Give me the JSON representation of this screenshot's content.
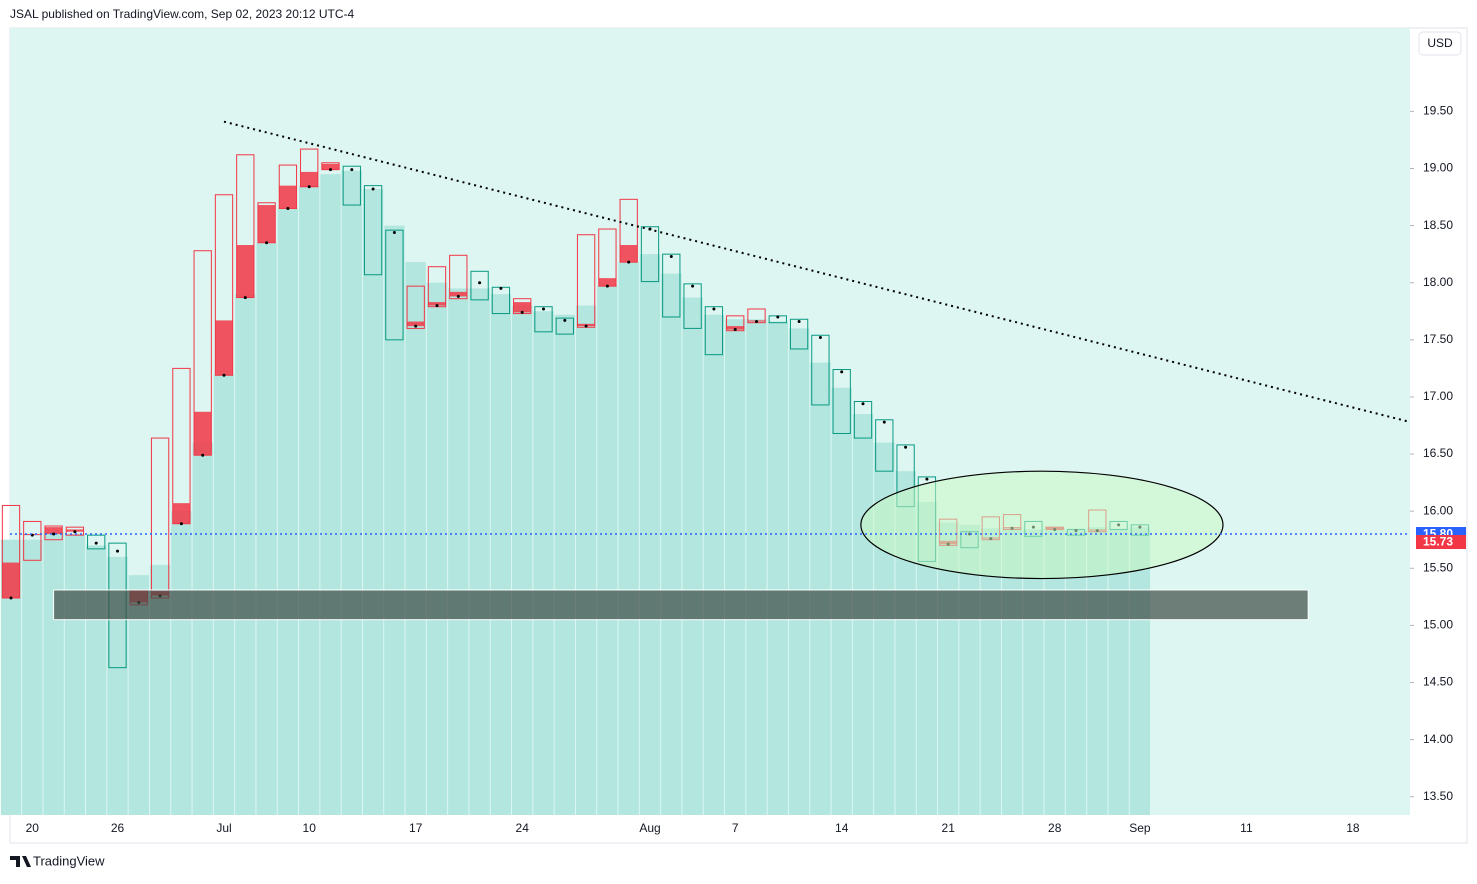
{
  "header": {
    "publisher": "JSAL published on TradingView.com, Sep 02, 2023 20:12 UTC-4",
    "currency": "USD",
    "brand": "TradingView"
  },
  "chart_data": {
    "type": "candlestick",
    "categories": [
      null,
      "20",
      null,
      null,
      null,
      "26",
      null,
      null,
      null,
      null,
      "Jul",
      null,
      null,
      null,
      "10",
      null,
      null,
      null,
      null,
      "17",
      null,
      null,
      null,
      null,
      "24",
      null,
      null,
      null,
      null,
      null,
      "Aug",
      null,
      null,
      null,
      "7",
      null,
      null,
      null,
      null,
      "14",
      null,
      null,
      null,
      null,
      "21",
      null,
      null,
      null,
      null,
      "28",
      null,
      null,
      null,
      "Sep",
      null,
      null,
      null,
      null,
      "11",
      null,
      null,
      null,
      null,
      "18",
      null,
      null
    ],
    "open": [
      15.55,
      15.8,
      15.86,
      15.84,
      15.7,
      15.6,
      15.31,
      15.3,
      16.07,
      16.87,
      17.67,
      18.33,
      18.68,
      18.85,
      18.97,
      19.04,
      18.7,
      18.1,
      17.52,
      17.66,
      17.83,
      17.92,
      17.88,
      17.75,
      17.83,
      17.59,
      17.57,
      17.64,
      18.04,
      18.33,
      18.02,
      17.72,
      17.62,
      17.39,
      17.62,
      17.67,
      17.66,
      17.44,
      16.95,
      16.7,
      16.66,
      16.37,
      16.06,
      15.58,
      15.74,
      15.7,
      15.77,
      15.86,
      15.8,
      15.86,
      15.8,
      15.84,
      15.85,
      15.8,
      null,
      null,
      null,
      null,
      null,
      null,
      null,
      null,
      null,
      null,
      null,
      null
    ],
    "high": [
      16.05,
      15.91,
      15.87,
      15.86,
      15.79,
      15.72,
      15.31,
      16.64,
      17.25,
      18.28,
      18.77,
      19.12,
      18.7,
      19.03,
      19.17,
      19.05,
      19.02,
      18.85,
      18.46,
      17.97,
      18.14,
      18.24,
      18.1,
      17.96,
      17.86,
      17.79,
      17.69,
      18.42,
      18.47,
      18.73,
      18.49,
      18.25,
      17.99,
      17.79,
      17.71,
      17.77,
      17.71,
      17.68,
      17.54,
      17.24,
      16.96,
      16.8,
      16.58,
      16.3,
      15.93,
      15.82,
      15.95,
      15.97,
      15.91,
      15.86,
      15.84,
      16.01,
      15.91,
      15.88,
      null,
      null,
      null,
      null,
      null,
      null,
      null,
      null,
      null,
      null,
      null,
      null
    ],
    "low": [
      15.24,
      15.57,
      15.75,
      15.79,
      15.67,
      14.63,
      15.18,
      15.24,
      15.89,
      16.49,
      17.19,
      17.87,
      18.35,
      18.65,
      18.84,
      18.99,
      18.68,
      18.07,
      17.5,
      17.6,
      17.79,
      17.86,
      17.85,
      17.73,
      17.73,
      17.57,
      17.55,
      17.61,
      17.97,
      18.18,
      18.01,
      17.7,
      17.6,
      17.37,
      17.58,
      17.65,
      17.65,
      17.42,
      16.93,
      16.68,
      16.64,
      16.35,
      16.04,
      15.56,
      15.7,
      15.68,
      15.75,
      15.84,
      15.78,
      15.84,
      15.79,
      15.82,
      15.84,
      15.79,
      null,
      null,
      null,
      null,
      null,
      null,
      null,
      null,
      null,
      null,
      null,
      null
    ],
    "close": [
      15.24,
      15.79,
      15.8,
      15.82,
      15.72,
      15.65,
      15.2,
      15.26,
      15.89,
      16.49,
      17.19,
      17.87,
      18.35,
      18.65,
      18.84,
      18.99,
      18.99,
      18.82,
      18.44,
      17.62,
      17.8,
      17.88,
      18.0,
      17.95,
      17.74,
      17.77,
      17.67,
      17.62,
      17.97,
      18.18,
      18.47,
      18.23,
      17.97,
      17.77,
      17.59,
      17.66,
      17.7,
      17.66,
      17.52,
      17.22,
      16.94,
      16.78,
      16.56,
      16.28,
      15.71,
      15.8,
      15.76,
      15.85,
      15.86,
      15.84,
      15.83,
      15.83,
      15.88,
      15.86,
      null,
      null,
      null,
      null,
      null,
      null,
      null,
      null,
      null,
      null,
      null,
      null
    ],
    "columns": [
      15.75,
      15.75,
      15.82,
      15.8,
      15.7,
      15.6,
      15.44,
      15.53,
      16.0,
      16.6,
      17.2,
      17.9,
      18.35,
      18.65,
      18.85,
      18.95,
      18.98,
      18.82,
      18.5,
      18.18,
      18.0,
      17.95,
      17.95,
      17.9,
      17.8,
      17.75,
      17.72,
      17.8,
      17.97,
      18.18,
      18.25,
      18.08,
      17.87,
      17.72,
      17.68,
      17.68,
      17.66,
      17.6,
      17.3,
      17.08,
      16.85,
      16.6,
      16.35,
      16.08,
      15.9,
      15.88,
      15.85,
      15.86,
      15.84,
      15.86,
      15.84,
      15.86,
      15.84,
      15.86,
      null,
      null,
      null,
      null,
      null,
      null,
      null,
      null,
      null,
      null,
      null,
      null
    ],
    "up_color": "#089981",
    "down_color": "#f23645",
    "column_color": "#b2e6de",
    "ylim": [
      13.34,
      20.23
    ],
    "yticks": [
      {
        "value": 13.5,
        "label": "13.50"
      },
      {
        "value": 14,
        "label": "14.00"
      },
      {
        "value": 14.5,
        "label": "14.50"
      },
      {
        "value": 15,
        "label": "15.00"
      },
      {
        "value": 15.5,
        "label": "15.50"
      },
      {
        "value": 16,
        "label": "16.00"
      },
      {
        "value": 16.5,
        "label": "16.50"
      },
      {
        "value": 17,
        "label": "17.00"
      },
      {
        "value": 17.5,
        "label": "17.50"
      },
      {
        "value": 18,
        "label": "18.00"
      },
      {
        "value": 18.5,
        "label": "18.50"
      },
      {
        "value": 19,
        "label": "19.00"
      },
      {
        "value": 19.5,
        "label": "19.50"
      }
    ],
    "trendline": {
      "start": [
        10,
        19.41
      ],
      "end": [
        65.7,
        16.78
      ]
    },
    "ellipse": {
      "center": [
        48.4,
        15.88
      ],
      "radius": [
        8.5,
        0.47
      ]
    },
    "zone": {
      "from": [
        2,
        15.31
      ],
      "to": [
        60.9,
        15.05
      ]
    },
    "price_lines": [
      {
        "value": 15.8,
        "label": "15.80",
        "color": "#2962ff"
      },
      {
        "value": 15.73,
        "label": "15.73",
        "color": "#f23645"
      }
    ]
  }
}
